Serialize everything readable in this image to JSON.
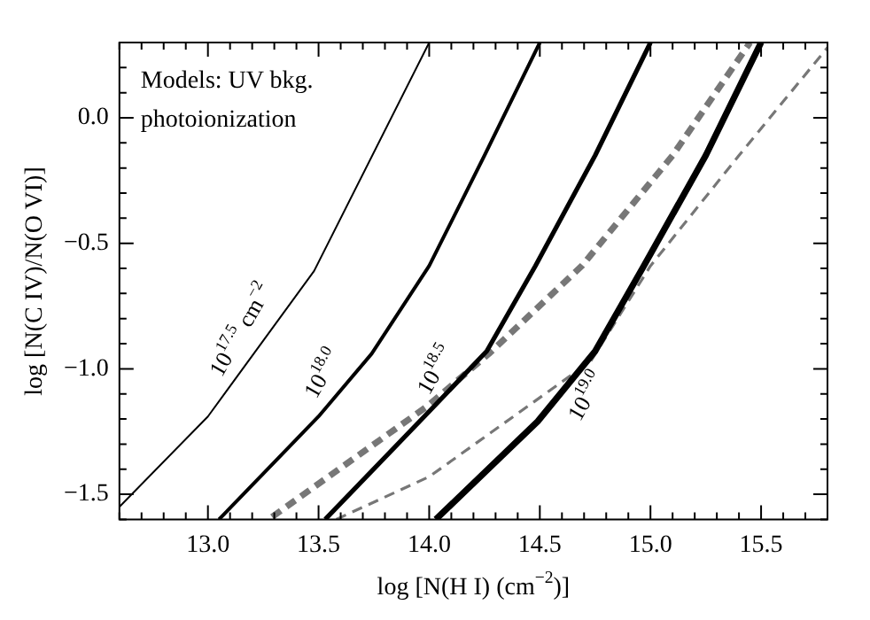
{
  "chart_data": {
    "type": "line",
    "xlabel": "log [N(H I) (cm$^{−2}$)]",
    "ylabel": "log [N(C IV)/N(O VI)]",
    "series": [
      {
        "color": "#000000",
        "x": [
          12.6,
          13.0,
          13.48,
          14.0
        ],
        "values": [
          -1.55,
          -1.19,
          -0.61,
          0.3
        ]
      },
      {
        "color": "#000000",
        "x": [
          13.05,
          13.5,
          13.74,
          14.0,
          14.25,
          14.5
        ],
        "values": [
          -1.6,
          -1.19,
          -0.94,
          -0.59,
          -0.15,
          0.3
        ]
      },
      {
        "color": "#000000",
        "x": [
          13.53,
          14.0,
          14.26,
          14.48,
          14.75,
          15.0
        ],
        "values": [
          -1.6,
          -1.17,
          -0.93,
          -0.59,
          -0.15,
          0.3
        ]
      },
      {
        "color": "#000000",
        "x": [
          14.03,
          14.49,
          14.75,
          14.97,
          15.25,
          15.5
        ],
        "values": [
          -1.6,
          -1.21,
          -0.93,
          -0.59,
          -0.15,
          0.3
        ]
      },
      {
        "color": "#777777",
        "line_style": "dashed",
        "x": [
          13.29,
          13.99,
          14.27,
          14.69,
          15.1,
          15.45
        ],
        "values": [
          -1.59,
          -1.15,
          -0.94,
          -0.59,
          -0.15,
          0.3
        ]
      },
      {
        "color": "#777777",
        "line_style": "dashed",
        "x": [
          13.58,
          14.0,
          14.73,
          15.0,
          15.4,
          15.8
        ],
        "values": [
          -1.6,
          -1.43,
          -0.97,
          -0.59,
          -0.15,
          0.28
        ]
      }
    ],
    "xlim": [
      12.6,
      15.8
    ],
    "ylim": [
      -1.6,
      0.3
    ],
    "xticks": [
      {
        "value": 12.6,
        "label": null
      },
      {
        "value": 12.7,
        "label": null
      },
      {
        "value": 12.8,
        "label": null
      },
      {
        "value": 12.9,
        "label": null
      },
      {
        "value": 13,
        "label": "13.0"
      },
      {
        "value": 13.1,
        "label": null
      },
      {
        "value": 13.2,
        "label": null
      },
      {
        "value": 13.3,
        "label": null
      },
      {
        "value": 13.4,
        "label": null
      },
      {
        "value": 13.5,
        "label": "13.5"
      },
      {
        "value": 13.6,
        "label": null
      },
      {
        "value": 13.7,
        "label": null
      },
      {
        "value": 13.8,
        "label": null
      },
      {
        "value": 13.9,
        "label": null
      },
      {
        "value": 14,
        "label": "14.0"
      },
      {
        "value": 14.1,
        "label": null
      },
      {
        "value": 14.2,
        "label": null
      },
      {
        "value": 14.3,
        "label": null
      },
      {
        "value": 14.4,
        "label": null
      },
      {
        "value": 14.5,
        "label": "14.5"
      },
      {
        "value": 14.6,
        "label": null
      },
      {
        "value": 14.7,
        "label": null
      },
      {
        "value": 14.8,
        "label": null
      },
      {
        "value": 14.9,
        "label": null
      },
      {
        "value": 15,
        "label": "15.0"
      },
      {
        "value": 15.1,
        "label": null
      },
      {
        "value": 15.2,
        "label": null
      },
      {
        "value": 15.3,
        "label": null
      },
      {
        "value": 15.4,
        "label": null
      },
      {
        "value": 15.5,
        "label": "15.5"
      },
      {
        "value": 15.6,
        "label": null
      },
      {
        "value": 15.7,
        "label": null
      }
    ],
    "yticks": [
      {
        "value": -1.6,
        "label": null
      },
      {
        "value": -1.5,
        "label": "−1.5"
      },
      {
        "value": -1.4,
        "label": null
      },
      {
        "value": -1.3,
        "label": null
      },
      {
        "value": -1.2,
        "label": null
      },
      {
        "value": -1.1,
        "label": null
      },
      {
        "value": -1,
        "label": "−1.0"
      },
      {
        "value": -0.9,
        "label": null
      },
      {
        "value": -0.8,
        "label": null
      },
      {
        "value": -0.7,
        "label": null
      },
      {
        "value": -0.6,
        "label": null
      },
      {
        "value": -0.5,
        "label": "−0.5"
      },
      {
        "value": -0.4,
        "label": null
      },
      {
        "value": -0.3,
        "label": null
      },
      {
        "value": -0.2,
        "label": null
      },
      {
        "value": -0.1,
        "label": null
      },
      {
        "value": 0,
        "label": "0.0"
      },
      {
        "value": 0.1,
        "label": null
      },
      {
        "value": 0.2,
        "label": null
      }
    ],
    "grid": false,
    "legend": false,
    "marker": "none",
    "annotations": [
      "Models: UV bkg.",
      "photoionization",
      {
        "text": "10$^{17.5}$ cm$^{−2}$",
        "x": 13.25,
        "y": -0.89
      },
      {
        "text": "10$^{18.0}$",
        "x": 13.62,
        "y": -1.065
      },
      {
        "text": "10$^{18.5}$",
        "x": 14.13,
        "y": -1.05
      },
      {
        "text": "10$^{19.0}$",
        "x": 14.62,
        "y": -1.07
      }
    ]
  }
}
